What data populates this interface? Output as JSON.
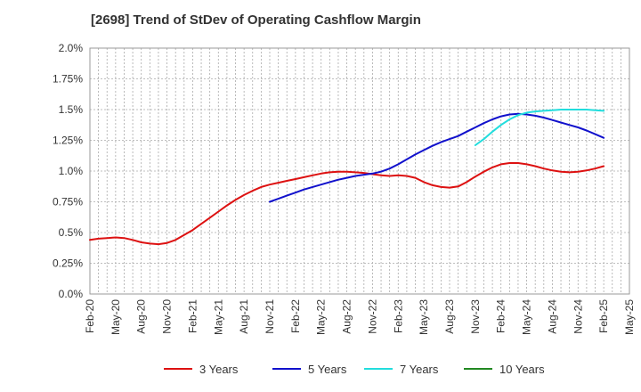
{
  "chart_data": {
    "type": "line",
    "title": "[2698]  Trend of StDev of Operating Cashflow Margin",
    "xlabel": "",
    "ylabel": "",
    "x_ticks": [
      "Feb-20",
      "May-20",
      "Aug-20",
      "Nov-20",
      "Feb-21",
      "May-21",
      "Aug-21",
      "Nov-21",
      "Feb-22",
      "May-22",
      "Aug-22",
      "Nov-22",
      "Feb-23",
      "May-23",
      "Aug-23",
      "Nov-23",
      "Feb-24",
      "May-24",
      "Aug-24",
      "Nov-24",
      "Feb-25",
      "May-25"
    ],
    "y_ticks": [
      "0.0%",
      "0.25%",
      "0.5%",
      "0.75%",
      "1.0%",
      "1.25%",
      "1.5%",
      "1.75%",
      "2.0%"
    ],
    "ylim": [
      0,
      2.0
    ],
    "grid": true,
    "legend_position": "bottom",
    "series": [
      {
        "name": "3 Years",
        "color": "#dd1111",
        "points": [
          [
            "Feb-20",
            0.44
          ],
          [
            "Mar-20",
            0.45
          ],
          [
            "Apr-20",
            0.455
          ],
          [
            "May-20",
            0.46
          ],
          [
            "Jun-20",
            0.455
          ],
          [
            "Jul-20",
            0.44
          ],
          [
            "Aug-20",
            0.42
          ],
          [
            "Sep-20",
            0.41
          ],
          [
            "Oct-20",
            0.405
          ],
          [
            "Nov-20",
            0.415
          ],
          [
            "Dec-20",
            0.44
          ],
          [
            "Jan-21",
            0.48
          ],
          [
            "Feb-21",
            0.52
          ],
          [
            "Mar-21",
            0.57
          ],
          [
            "Apr-21",
            0.62
          ],
          [
            "May-21",
            0.67
          ],
          [
            "Jun-21",
            0.72
          ],
          [
            "Jul-21",
            0.765
          ],
          [
            "Aug-21",
            0.805
          ],
          [
            "Sep-21",
            0.84
          ],
          [
            "Oct-21",
            0.87
          ],
          [
            "Nov-21",
            0.89
          ],
          [
            "Dec-21",
            0.905
          ],
          [
            "Jan-22",
            0.92
          ],
          [
            "Feb-22",
            0.935
          ],
          [
            "Mar-22",
            0.95
          ],
          [
            "Apr-22",
            0.965
          ],
          [
            "May-22",
            0.98
          ],
          [
            "Jun-22",
            0.99
          ],
          [
            "Jul-22",
            0.995
          ],
          [
            "Aug-22",
            0.995
          ],
          [
            "Sep-22",
            0.99
          ],
          [
            "Oct-22",
            0.985
          ],
          [
            "Nov-22",
            0.975
          ],
          [
            "Dec-22",
            0.965
          ],
          [
            "Jan-23",
            0.96
          ],
          [
            "Feb-23",
            0.965
          ],
          [
            "Mar-23",
            0.96
          ],
          [
            "Apr-23",
            0.945
          ],
          [
            "May-23",
            0.91
          ],
          [
            "Jun-23",
            0.885
          ],
          [
            "Jul-23",
            0.87
          ],
          [
            "Aug-23",
            0.865
          ],
          [
            "Sep-23",
            0.875
          ],
          [
            "Oct-23",
            0.91
          ],
          [
            "Nov-23",
            0.955
          ],
          [
            "Dec-23",
            0.995
          ],
          [
            "Jan-24",
            1.03
          ],
          [
            "Feb-24",
            1.055
          ],
          [
            "Mar-24",
            1.065
          ],
          [
            "Apr-24",
            1.065
          ],
          [
            "May-24",
            1.055
          ],
          [
            "Jun-24",
            1.04
          ],
          [
            "Jul-24",
            1.02
          ],
          [
            "Aug-24",
            1.005
          ],
          [
            "Sep-24",
            0.995
          ],
          [
            "Oct-24",
            0.99
          ],
          [
            "Nov-24",
            0.995
          ],
          [
            "Dec-24",
            1.005
          ],
          [
            "Jan-25",
            1.02
          ],
          [
            "Feb-25",
            1.04
          ]
        ]
      },
      {
        "name": "5 Years",
        "color": "#1111cc",
        "points": [
          [
            "Nov-21",
            0.75
          ],
          [
            "Dec-21",
            0.775
          ],
          [
            "Jan-22",
            0.8
          ],
          [
            "Feb-22",
            0.825
          ],
          [
            "Mar-22",
            0.85
          ],
          [
            "Apr-22",
            0.87
          ],
          [
            "May-22",
            0.89
          ],
          [
            "Jun-22",
            0.91
          ],
          [
            "Jul-22",
            0.93
          ],
          [
            "Aug-22",
            0.945
          ],
          [
            "Sep-22",
            0.96
          ],
          [
            "Oct-22",
            0.97
          ],
          [
            "Nov-22",
            0.98
          ],
          [
            "Dec-22",
            0.995
          ],
          [
            "Jan-23",
            1.02
          ],
          [
            "Feb-23",
            1.055
          ],
          [
            "Mar-23",
            1.095
          ],
          [
            "Apr-23",
            1.135
          ],
          [
            "May-23",
            1.17
          ],
          [
            "Jun-23",
            1.205
          ],
          [
            "Jul-23",
            1.235
          ],
          [
            "Aug-23",
            1.26
          ],
          [
            "Sep-23",
            1.285
          ],
          [
            "Oct-23",
            1.32
          ],
          [
            "Nov-23",
            1.355
          ],
          [
            "Dec-23",
            1.39
          ],
          [
            "Jan-24",
            1.42
          ],
          [
            "Feb-24",
            1.445
          ],
          [
            "Mar-24",
            1.46
          ],
          [
            "Apr-24",
            1.465
          ],
          [
            "May-24",
            1.46
          ],
          [
            "Jun-24",
            1.45
          ],
          [
            "Jul-24",
            1.435
          ],
          [
            "Aug-24",
            1.415
          ],
          [
            "Sep-24",
            1.395
          ],
          [
            "Oct-24",
            1.375
          ],
          [
            "Nov-24",
            1.355
          ],
          [
            "Dec-24",
            1.33
          ],
          [
            "Jan-25",
            1.3
          ],
          [
            "Feb-25",
            1.27
          ]
        ]
      },
      {
        "name": "7 Years",
        "color": "#22dddd",
        "points": [
          [
            "Nov-23",
            1.21
          ],
          [
            "Dec-23",
            1.26
          ],
          [
            "Jan-24",
            1.32
          ],
          [
            "Feb-24",
            1.375
          ],
          [
            "Mar-24",
            1.42
          ],
          [
            "Apr-24",
            1.455
          ],
          [
            "May-24",
            1.475
          ],
          [
            "Jun-24",
            1.485
          ],
          [
            "Jul-24",
            1.49
          ],
          [
            "Aug-24",
            1.495
          ],
          [
            "Sep-24",
            1.5
          ],
          [
            "Oct-24",
            1.5
          ],
          [
            "Nov-24",
            1.5
          ],
          [
            "Dec-24",
            1.5
          ],
          [
            "Jan-25",
            1.495
          ],
          [
            "Feb-25",
            1.49
          ]
        ]
      },
      {
        "name": "10 Years",
        "color": "#228822",
        "points": []
      }
    ]
  }
}
